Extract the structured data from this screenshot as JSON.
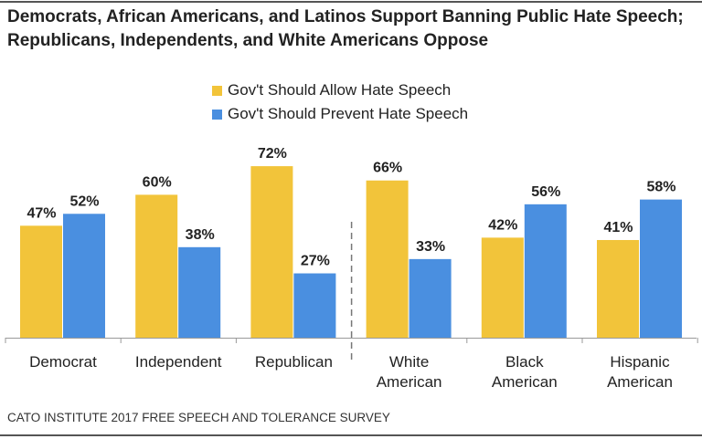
{
  "chart_data": {
    "type": "bar",
    "title": "Democrats, African Americans, and Latinos Support Banning Public Hate Speech; Republicans, Independents, and White Americans Oppose",
    "categories": [
      "Democrat",
      "Independent",
      "Republican",
      "White American",
      "Black American",
      "Hispanic American"
    ],
    "category_lines": [
      [
        "Democrat"
      ],
      [
        "Independent"
      ],
      [
        "Republican"
      ],
      [
        "White",
        "American"
      ],
      [
        "Black",
        "American"
      ],
      [
        "Hispanic",
        "American"
      ]
    ],
    "series": [
      {
        "name": "Gov't Should Allow Hate Speech",
        "color": "#F2C43A",
        "values": [
          47,
          60,
          72,
          66,
          42,
          41
        ]
      },
      {
        "name": "Gov't Should Prevent Hate Speech",
        "color": "#4A8FE0",
        "values": [
          52,
          38,
          27,
          33,
          56,
          58
        ]
      }
    ],
    "value_format": "%",
    "ylim": [
      0,
      100
    ],
    "grid": false,
    "legend_position": "top-center",
    "divider_after_category": "Republican",
    "source": "CATO INSTITUTE 2017 FREE SPEECH AND TOLERANCE SURVEY"
  }
}
